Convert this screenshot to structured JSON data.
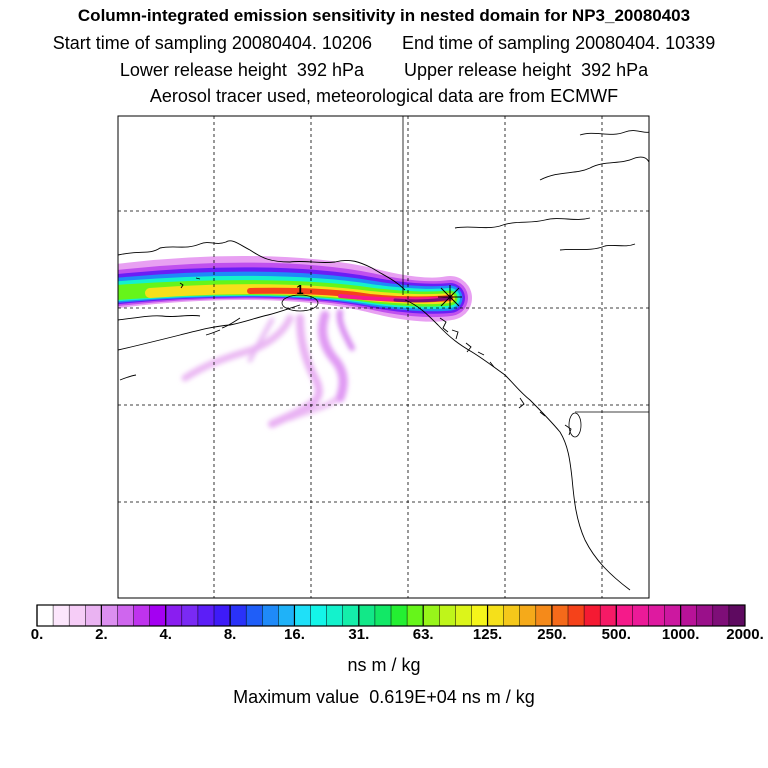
{
  "titles": {
    "line1": "Column-integrated emission sensitivity in nested domain for NP3_20080403",
    "line2": "Start time of sampling 20080404. 10206      End time of sampling 20080404. 10339",
    "line3": "Lower release height  392 hPa        Upper release height  392 hPa",
    "line4": "Aerosol tracer used, meteorological data are from ECMWF"
  },
  "map": {
    "label_marker": "1",
    "gridlines": "dashed",
    "release_point_marker": "asterisk"
  },
  "colorbar": {
    "tick_labels": [
      "0.",
      "2.",
      "4.",
      "8.",
      "16.",
      "31.",
      "63.",
      "125.",
      "250.",
      "500.",
      "1000.",
      "2000."
    ],
    "colors": [
      "#ffffff",
      "#fce6fc",
      "#f6cdf7",
      "#eab3f2",
      "#dc8ff0",
      "#cf66ee",
      "#bf33ee",
      "#a400f2",
      "#8a1ef0",
      "#7a2af4",
      "#5c1ef7",
      "#3e1bf8",
      "#2a32f8",
      "#1f5ef8",
      "#1f8af8",
      "#1fb2f8",
      "#1fe0f8",
      "#14f5e8",
      "#14f2cc",
      "#14efaa",
      "#12e888",
      "#12e866",
      "#24ef32",
      "#66f51a",
      "#98f51a",
      "#bff51a",
      "#dcf51a",
      "#f5f51a",
      "#f5e01a",
      "#f5c81a",
      "#f5aa1a",
      "#f58a1a",
      "#f56a1a",
      "#f5421a",
      "#f51a33",
      "#f51a66",
      "#f51a8a",
      "#ec1a98",
      "#de1aa0",
      "#cc18a0",
      "#b81298",
      "#9a108a",
      "#7e0e78",
      "#5e0a60"
    ],
    "unit": "ns m / kg"
  },
  "max_value_text": "Maximum value  0.619E+04 ns m / kg"
}
